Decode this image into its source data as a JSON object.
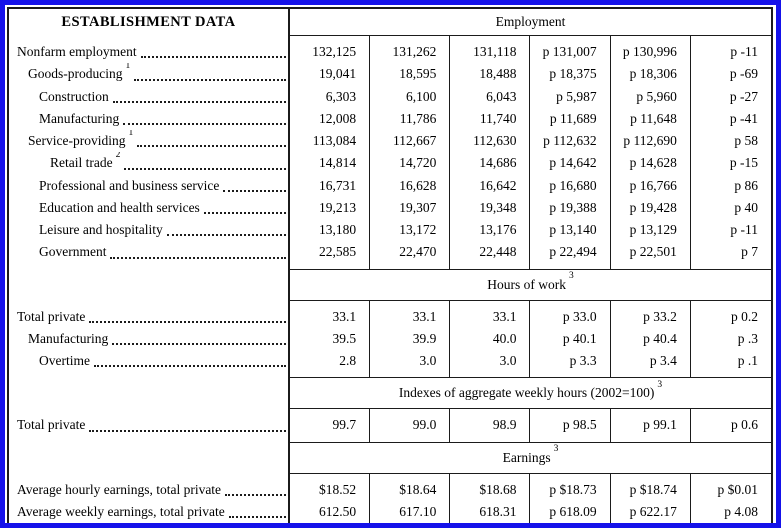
{
  "colors": {
    "frame_border": "#1512ea",
    "grid_lines": "#1b1b1b",
    "background": "#ffffff",
    "text": "#000000"
  },
  "stub_header": "ESTABLISHMENT DATA",
  "sections": [
    {
      "band": {
        "text": "Employment",
        "sup": ""
      },
      "rows": [
        {
          "label": "Nonfarm employment",
          "sup": "",
          "indent": 0,
          "values": [
            "132,125",
            "131,262",
            "131,118",
            "p 131,007",
            "p 130,996",
            "p -11"
          ]
        },
        {
          "label": "Goods-producing",
          "sup": "1",
          "indent": 1,
          "values": [
            "19,041",
            "18,595",
            "18,488",
            "p 18,375",
            "p 18,306",
            "p -69"
          ]
        },
        {
          "label": "Construction",
          "sup": "",
          "indent": 2,
          "values": [
            "6,303",
            "6,100",
            "6,043",
            "p 5,987",
            "p 5,960",
            "p -27"
          ]
        },
        {
          "label": "Manufacturing",
          "sup": "",
          "indent": 2,
          "values": [
            "12,008",
            "11,786",
            "11,740",
            "p 11,689",
            "p 11,648",
            "p -41"
          ]
        },
        {
          "label": "Service-providing",
          "sup": "1",
          "indent": 1,
          "values": [
            "113,084",
            "112,667",
            "112,630",
            "p 112,632",
            "p 112,690",
            "p 58"
          ]
        },
        {
          "label": "Retail trade",
          "sup": "2",
          "indent": 3,
          "values": [
            "14,814",
            "14,720",
            "14,686",
            "p 14,642",
            "p 14,628",
            "p -15"
          ]
        },
        {
          "label": "Professional and business service",
          "sup": "",
          "indent": 2,
          "values": [
            "16,731",
            "16,628",
            "16,642",
            "p 16,680",
            "p 16,766",
            "p 86"
          ]
        },
        {
          "label": "Education and health services",
          "sup": "",
          "indent": 2,
          "values": [
            "19,213",
            "19,307",
            "19,348",
            "p 19,388",
            "p 19,428",
            "p 40"
          ]
        },
        {
          "label": "Leisure and hospitality",
          "sup": "",
          "indent": 2,
          "values": [
            "13,180",
            "13,172",
            "13,176",
            "p 13,140",
            "p 13,129",
            "p -11"
          ]
        },
        {
          "label": "Government",
          "sup": "",
          "indent": 2,
          "values": [
            "22,585",
            "22,470",
            "22,448",
            "p 22,494",
            "p 22,501",
            "p 7"
          ]
        }
      ]
    },
    {
      "band": {
        "text": "Hours of work",
        "sup": "3"
      },
      "rows": [
        {
          "label": "Total private",
          "sup": "",
          "indent": 0,
          "values": [
            "33.1",
            "33.1",
            "33.1",
            "p 33.0",
            "p 33.2",
            "p 0.2"
          ]
        },
        {
          "label": "Manufacturing",
          "sup": "",
          "indent": 1,
          "values": [
            "39.5",
            "39.9",
            "40.0",
            "p 40.1",
            "p 40.4",
            "p .3"
          ]
        },
        {
          "label": "Overtime",
          "sup": "",
          "indent": 2,
          "values": [
            "2.8",
            "3.0",
            "3.0",
            "p 3.3",
            "p 3.4",
            "p .1"
          ]
        }
      ]
    },
    {
      "band": {
        "text": "Indexes of aggregate weekly hours (2002=100)",
        "sup": "3"
      },
      "rows": [
        {
          "label": "Total private",
          "sup": "",
          "indent": 0,
          "values": [
            "99.7",
            "99.0",
            "98.9",
            "p 98.5",
            "p 99.1",
            "p 0.6"
          ]
        }
      ]
    },
    {
      "band": {
        "text": "Earnings",
        "sup": "3"
      },
      "rows": [
        {
          "label": "Average hourly earnings, total private",
          "sup": "",
          "indent": 0,
          "values": [
            "$18.52",
            "$18.64",
            "$18.68",
            "p $18.73",
            "p $18.74",
            "p $0.01"
          ]
        },
        {
          "label": "Average weekly earnings, total private",
          "sup": "",
          "indent": 0,
          "values": [
            "612.50",
            "617.10",
            "618.31",
            "p 618.09",
            "p 622.17",
            "p 4.08"
          ]
        }
      ]
    }
  ]
}
